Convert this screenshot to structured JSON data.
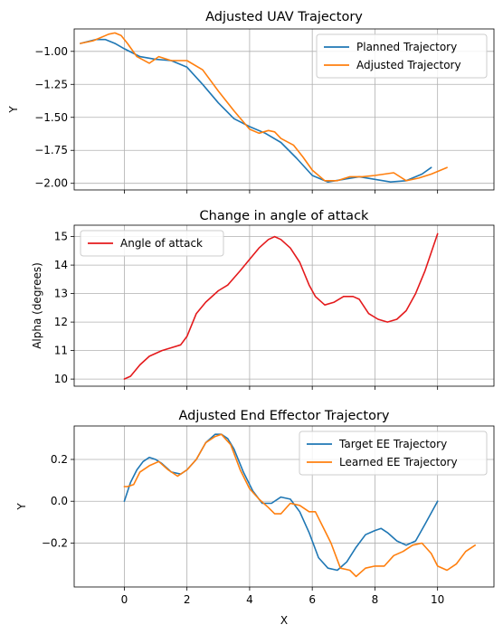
{
  "figure": {
    "shared_xlabel": "X",
    "x_ticks": [
      0,
      2,
      4,
      6,
      8,
      10
    ]
  },
  "chart_data": [
    {
      "type": "line",
      "title": "Adjusted UAV Trajectory",
      "xlabel": "",
      "ylabel": "Y",
      "xlim": [
        -1.6,
        11.8
      ],
      "ylim": [
        -2.05,
        -0.83
      ],
      "y_ticks": [
        -2.0,
        -1.75,
        -1.5,
        -1.25,
        -1.0
      ],
      "y_tick_labels": [
        "−2.00",
        "−1.75",
        "−1.50",
        "−1.25",
        "−1.00"
      ],
      "grid": true,
      "legend_position": "upper-right",
      "series": [
        {
          "name": "Planned Trajectory",
          "color": "#1f77b4",
          "x": [
            -1.4,
            -0.9,
            -0.6,
            -0.3,
            0.0,
            0.5,
            1.0,
            1.5,
            2.0,
            2.5,
            3.0,
            3.5,
            4.0,
            4.5,
            5.0,
            5.5,
            6.0,
            6.5,
            7.0,
            7.5,
            8.0,
            8.5,
            9.0,
            9.5,
            9.8
          ],
          "y": [
            -0.94,
            -0.91,
            -0.91,
            -0.94,
            -0.98,
            -1.04,
            -1.06,
            -1.07,
            -1.12,
            -1.25,
            -1.39,
            -1.51,
            -1.57,
            -1.62,
            -1.69,
            -1.81,
            -1.94,
            -1.99,
            -1.97,
            -1.95,
            -1.97,
            -1.99,
            -1.98,
            -1.93,
            -1.88
          ]
        },
        {
          "name": "Adjusted Trajectory",
          "color": "#ff7f0e",
          "x": [
            -1.4,
            -1.0,
            -0.8,
            -0.5,
            -0.3,
            -0.1,
            0.1,
            0.4,
            0.8,
            1.1,
            1.5,
            2.0,
            2.5,
            3.0,
            3.5,
            4.0,
            4.3,
            4.6,
            4.8,
            5.0,
            5.4,
            5.7,
            6.0,
            6.4,
            6.8,
            7.2,
            7.6,
            8.0,
            8.3,
            8.6,
            9.0,
            9.4,
            9.8,
            10.3
          ],
          "y": [
            -0.94,
            -0.92,
            -0.9,
            -0.87,
            -0.86,
            -0.88,
            -0.94,
            -1.04,
            -1.09,
            -1.04,
            -1.07,
            -1.07,
            -1.14,
            -1.3,
            -1.45,
            -1.59,
            -1.62,
            -1.6,
            -1.61,
            -1.66,
            -1.71,
            -1.8,
            -1.9,
            -1.98,
            -1.98,
            -1.95,
            -1.95,
            -1.94,
            -1.93,
            -1.92,
            -1.98,
            -1.96,
            -1.93,
            -1.88
          ]
        }
      ]
    },
    {
      "type": "line",
      "title": "Change in angle of attack",
      "xlabel": "",
      "ylabel": "Alpha (degrees)",
      "xlim": [
        -1.6,
        11.8
      ],
      "ylim": [
        9.75,
        15.4
      ],
      "y_ticks": [
        10,
        11,
        12,
        13,
        14,
        15
      ],
      "y_tick_labels": [
        "10",
        "11",
        "12",
        "13",
        "14",
        "15"
      ],
      "grid": true,
      "legend_position": "upper-left",
      "series": [
        {
          "name": "Angle of attack",
          "color": "#e41a1c",
          "x": [
            0.0,
            0.2,
            0.5,
            0.8,
            1.2,
            1.5,
            1.8,
            2.0,
            2.3,
            2.6,
            3.0,
            3.3,
            3.7,
            4.0,
            4.3,
            4.6,
            4.8,
            5.0,
            5.3,
            5.6,
            5.9,
            6.1,
            6.4,
            6.7,
            7.0,
            7.3,
            7.5,
            7.8,
            8.1,
            8.4,
            8.7,
            9.0,
            9.3,
            9.6,
            10.0
          ],
          "y": [
            10.0,
            10.1,
            10.5,
            10.8,
            11.0,
            11.1,
            11.2,
            11.5,
            12.3,
            12.7,
            13.1,
            13.3,
            13.8,
            14.2,
            14.6,
            14.9,
            15.0,
            14.9,
            14.6,
            14.1,
            13.3,
            12.9,
            12.6,
            12.7,
            12.9,
            12.9,
            12.8,
            12.3,
            12.1,
            12.0,
            12.1,
            12.4,
            13.0,
            13.8,
            15.1
          ]
        }
      ]
    },
    {
      "type": "line",
      "title": "Adjusted End Effector Trajectory",
      "xlabel": "X",
      "ylabel": "Y",
      "xlim": [
        -1.6,
        11.8
      ],
      "ylim": [
        -0.41,
        0.36
      ],
      "y_ticks": [
        -0.2,
        0.0,
        0.2
      ],
      "y_tick_labels": [
        "−0.2",
        "0.0",
        "0.2"
      ],
      "grid": true,
      "legend_position": "upper-right",
      "series": [
        {
          "name": "Target EE Trajectory",
          "color": "#1f77b4",
          "x": [
            0.0,
            0.2,
            0.4,
            0.6,
            0.8,
            1.0,
            1.2,
            1.5,
            1.8,
            2.0,
            2.3,
            2.6,
            2.9,
            3.1,
            3.3,
            3.5,
            3.8,
            4.1,
            4.4,
            4.7,
            5.0,
            5.3,
            5.6,
            5.9,
            6.2,
            6.5,
            6.8,
            7.1,
            7.4,
            7.7,
            8.0,
            8.2,
            8.4,
            8.7,
            9.0,
            9.3,
            9.6,
            10.0
          ],
          "y": [
            0.0,
            0.09,
            0.15,
            0.19,
            0.21,
            0.2,
            0.18,
            0.14,
            0.13,
            0.15,
            0.2,
            0.28,
            0.32,
            0.32,
            0.3,
            0.25,
            0.14,
            0.05,
            -0.01,
            -0.01,
            0.02,
            0.01,
            -0.05,
            -0.15,
            -0.27,
            -0.32,
            -0.33,
            -0.29,
            -0.22,
            -0.16,
            -0.14,
            -0.13,
            -0.15,
            -0.19,
            -0.21,
            -0.19,
            -0.11,
            0.0
          ]
        },
        {
          "name": "Learned EE Trajectory",
          "color": "#ff7f0e",
          "x": [
            0.0,
            0.1,
            0.3,
            0.5,
            0.8,
            1.1,
            1.4,
            1.7,
            2.0,
            2.3,
            2.6,
            2.9,
            3.1,
            3.4,
            3.7,
            4.0,
            4.3,
            4.6,
            4.8,
            5.0,
            5.3,
            5.6,
            5.9,
            6.1,
            6.4,
            6.6,
            6.9,
            7.2,
            7.4,
            7.7,
            8.0,
            8.3,
            8.6,
            8.9,
            9.2,
            9.5,
            9.8,
            10.0,
            10.3,
            10.6,
            10.9,
            11.2
          ],
          "y": [
            0.07,
            0.07,
            0.08,
            0.14,
            0.17,
            0.19,
            0.15,
            0.12,
            0.15,
            0.2,
            0.28,
            0.31,
            0.32,
            0.27,
            0.15,
            0.06,
            0.01,
            -0.03,
            -0.06,
            -0.06,
            -0.01,
            -0.02,
            -0.05,
            -0.05,
            -0.14,
            -0.2,
            -0.32,
            -0.33,
            -0.36,
            -0.32,
            -0.31,
            -0.31,
            -0.26,
            -0.24,
            -0.21,
            -0.2,
            -0.25,
            -0.31,
            -0.33,
            -0.3,
            -0.24,
            -0.21
          ]
        }
      ]
    }
  ]
}
